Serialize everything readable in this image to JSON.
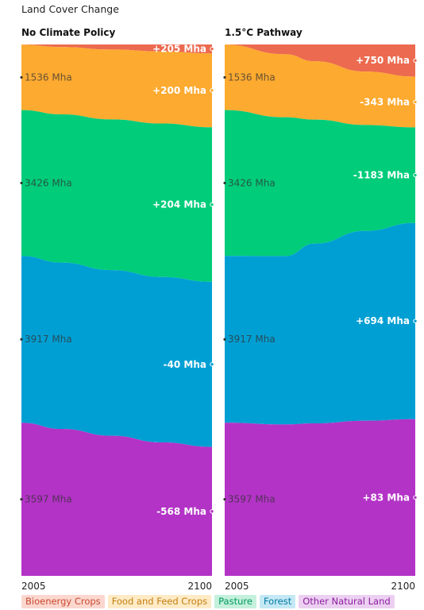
{
  "title": "Land Cover Change",
  "chart_data": {
    "type": "area",
    "x_labels": [
      "2005",
      "2100"
    ],
    "categories": [
      "Bioenergy Crops",
      "Food and Feed Crops",
      "Pasture",
      "Forest",
      "Other Natural Land"
    ],
    "colors": {
      "Bioenergy Crops": "#ec6a4f",
      "Food and Feed Crops": "#fdaa30",
      "Pasture": "#00cc7a",
      "Forest": "#009fd3",
      "Other Natural Land": "#b333c6"
    },
    "legend": [
      {
        "name": "Bioenergy Crops",
        "bg": "#fbd7cf",
        "fg": "#c9492f"
      },
      {
        "name": "Food and Feed Crops",
        "bg": "#feebc6",
        "fg": "#c47d10"
      },
      {
        "name": "Pasture",
        "bg": "#c4f0dc",
        "fg": "#009a5c"
      },
      {
        "name": "Forest",
        "bg": "#c4e8f4",
        "fg": "#007aa4"
      },
      {
        "name": "Other Natural Land",
        "bg": "#ecd0f1",
        "fg": "#8d1ea0"
      }
    ],
    "panels": [
      {
        "title": "No Climate Policy",
        "x": [
          2005,
          2025,
          2050,
          2075,
          2100
        ],
        "series": [
          {
            "name": "Bioenergy Crops",
            "start_label": "",
            "end_label": "+205 Mha",
            "values": [
              5,
              60,
              120,
              165,
              210
            ]
          },
          {
            "name": "Food and Feed Crops",
            "start_label": "1536 Mha",
            "end_label": "+200 Mha",
            "values": [
              1536,
              1580,
              1640,
              1690,
              1736
            ]
          },
          {
            "name": "Pasture",
            "start_label": "3426 Mha",
            "end_label": "+204 Mha",
            "values": [
              3426,
              3480,
              3540,
              3600,
              3630
            ]
          },
          {
            "name": "Forest",
            "start_label": "3917 Mha",
            "end_label": "-40 Mha",
            "values": [
              3917,
              3905,
              3890,
              3882,
              3877
            ]
          },
          {
            "name": "Other Natural Land",
            "start_label": "3597 Mha",
            "end_label": "-568 Mha",
            "values": [
              3597,
              3450,
              3290,
              3130,
              3029
            ]
          }
        ]
      },
      {
        "title": "1.5°C Pathway",
        "x": [
          2005,
          2035,
          2050,
          2075,
          2100
        ],
        "series": [
          {
            "name": "Bioenergy Crops",
            "start_label": "",
            "end_label": "+750 Mha",
            "values": [
              5,
              230,
              400,
              640,
              755
            ]
          },
          {
            "name": "Food and Feed Crops",
            "start_label": "1536 Mha",
            "end_label": "-343 Mha",
            "values": [
              1536,
              1480,
              1390,
              1260,
              1193
            ]
          },
          {
            "name": "Pasture",
            "start_label": "3426 Mha",
            "end_label": "-1183 Mha",
            "values": [
              3426,
              3260,
              2950,
              2500,
              2243
            ]
          },
          {
            "name": "Forest",
            "start_label": "3917 Mha",
            "end_label": "+694 Mha",
            "values": [
              3917,
              3955,
              4280,
              4480,
              4611
            ]
          },
          {
            "name": "Other Natural Land",
            "start_label": "3597 Mha",
            "end_label": "+83 Mha",
            "values": [
              3597,
              3556,
              3630,
              3660,
              3680
            ]
          }
        ]
      }
    ]
  }
}
